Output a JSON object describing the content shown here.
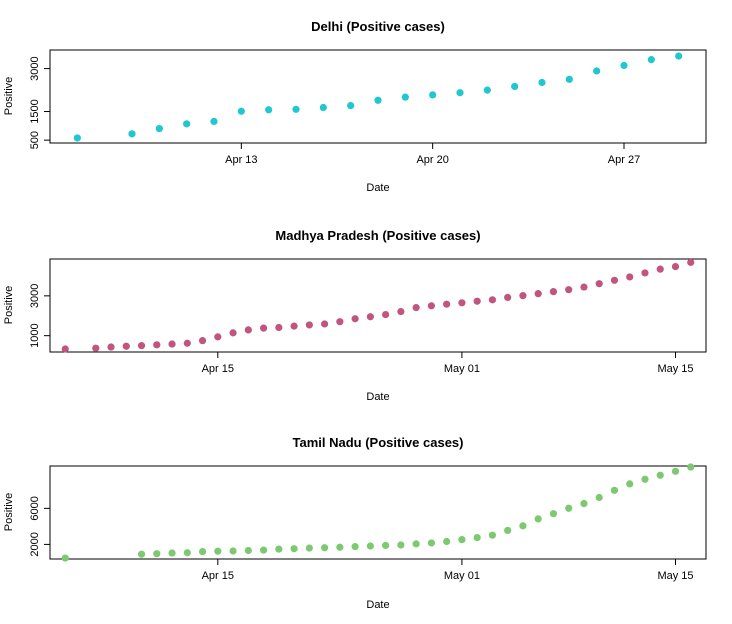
{
  "chart_data": [
    {
      "type": "scatter",
      "title": "Delhi (Positive cases)",
      "xlabel": "Date",
      "ylabel": "Positive",
      "color": "#1fc8d0",
      "x_ticks": [
        "Apr 13",
        "Apr 20",
        "Apr 27"
      ],
      "x_tick_dates": [
        "2020-04-13",
        "2020-04-20",
        "2020-04-27"
      ],
      "y_ticks": [
        500,
        1500,
        3000
      ],
      "xlim": [
        "2020-04-06",
        "2020-04-30"
      ],
      "ylim": [
        400,
        3650
      ],
      "x": [
        "2020-04-07",
        "2020-04-09",
        "2020-04-10",
        "2020-04-11",
        "2020-04-12",
        "2020-04-13",
        "2020-04-14",
        "2020-04-15",
        "2020-04-16",
        "2020-04-17",
        "2020-04-18",
        "2020-04-19",
        "2020-04-20",
        "2020-04-21",
        "2020-04-22",
        "2020-04-23",
        "2020-04-24",
        "2020-04-25",
        "2020-04-26",
        "2020-04-27",
        "2020-04-28",
        "2020-04-29"
      ],
      "values": [
        576,
        720,
        903,
        1069,
        1154,
        1510,
        1561,
        1578,
        1640,
        1707,
        1893,
        2003,
        2081,
        2156,
        2248,
        2376,
        2514,
        2625,
        2918,
        3108,
        3314,
        3439
      ]
    },
    {
      "type": "scatter",
      "title": "Madhya Pradesh (Positive cases)",
      "xlabel": "Date",
      "ylabel": "Positive",
      "color": "#c2557f",
      "x_ticks": [
        "Apr 15",
        "May 01",
        "May 15"
      ],
      "x_tick_dates": [
        "2020-04-15",
        "2020-05-01",
        "2020-05-15"
      ],
      "y_ticks": [
        1000,
        3000
      ],
      "xlim": [
        "2020-04-04",
        "2020-05-17"
      ],
      "ylim": [
        180,
        4850
      ],
      "x": [
        "2020-04-05",
        "2020-04-07",
        "2020-04-08",
        "2020-04-09",
        "2020-04-10",
        "2020-04-11",
        "2020-04-12",
        "2020-04-13",
        "2020-04-14",
        "2020-04-15",
        "2020-04-16",
        "2020-04-17",
        "2020-04-18",
        "2020-04-19",
        "2020-04-20",
        "2020-04-21",
        "2020-04-22",
        "2020-04-23",
        "2020-04-24",
        "2020-04-25",
        "2020-04-26",
        "2020-04-27",
        "2020-04-28",
        "2020-04-29",
        "2020-04-30",
        "2020-05-01",
        "2020-05-02",
        "2020-05-03",
        "2020-05-04",
        "2020-05-05",
        "2020-05-06",
        "2020-05-07",
        "2020-05-08",
        "2020-05-09",
        "2020-05-10",
        "2020-05-11",
        "2020-05-12",
        "2020-05-13",
        "2020-05-14",
        "2020-05-15",
        "2020-05-16"
      ],
      "values": [
        330,
        370,
        430,
        470,
        500,
        540,
        580,
        620,
        750,
        940,
        1140,
        1290,
        1380,
        1410,
        1480,
        1540,
        1590,
        1700,
        1850,
        1950,
        2060,
        2210,
        2410,
        2500,
        2580,
        2650,
        2730,
        2800,
        2920,
        3010,
        3110,
        3210,
        3310,
        3440,
        3610,
        3780,
        3950,
        4150,
        4340,
        4470,
        4680
      ]
    },
    {
      "type": "scatter",
      "title": "Tamil Nadu (Positive cases)",
      "xlabel": "Date",
      "ylabel": "Positive",
      "color": "#7cc970",
      "x_ticks": [
        "Apr 15",
        "May 01",
        "May 15"
      ],
      "x_tick_dates": [
        "2020-04-15",
        "2020-05-01",
        "2020-05-15"
      ],
      "y_ticks": [
        2000,
        6000
      ],
      "xlim": [
        "2020-04-04",
        "2020-05-17"
      ],
      "ylim": [
        380,
        10700
      ],
      "x": [
        "2020-04-05",
        "2020-04-10",
        "2020-04-11",
        "2020-04-12",
        "2020-04-13",
        "2020-04-14",
        "2020-04-15",
        "2020-04-16",
        "2020-04-17",
        "2020-04-18",
        "2020-04-19",
        "2020-04-20",
        "2020-04-21",
        "2020-04-22",
        "2020-04-23",
        "2020-04-24",
        "2020-04-25",
        "2020-04-26",
        "2020-04-27",
        "2020-04-28",
        "2020-04-29",
        "2020-04-30",
        "2020-05-01",
        "2020-05-02",
        "2020-05-03",
        "2020-05-04",
        "2020-05-05",
        "2020-05-06",
        "2020-05-07",
        "2020-05-08",
        "2020-05-09",
        "2020-05-10",
        "2020-05-11",
        "2020-05-12",
        "2020-05-13",
        "2020-05-14",
        "2020-05-15",
        "2020-05-16"
      ],
      "values": [
        485,
        911,
        969,
        1043,
        1075,
        1204,
        1242,
        1267,
        1323,
        1372,
        1477,
        1520,
        1596,
        1629,
        1683,
        1755,
        1821,
        1885,
        1937,
        2058,
        2162,
        2323,
        2526,
        2757,
        3023,
        3550,
        4058,
        4829,
        5409,
        6009,
        6535,
        7204,
        8002,
        8718,
        9227,
        9674,
        10108,
        10585
      ]
    }
  ]
}
